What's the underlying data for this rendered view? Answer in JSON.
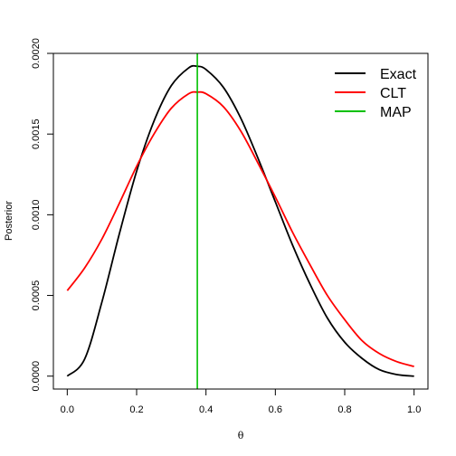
{
  "chart_data": {
    "type": "line",
    "title": "",
    "xlabel": "θ",
    "ylabel": "Posterior",
    "xlim": [
      -0.04,
      1.04
    ],
    "ylim": [
      -8e-05,
      0.002
    ],
    "x_ticks": [
      0.0,
      0.2,
      0.4,
      0.6,
      0.8,
      1.0
    ],
    "x_tick_labels": [
      "0.0",
      "0.2",
      "0.4",
      "0.6",
      "0.8",
      "1.0"
    ],
    "y_ticks": [
      0.0,
      0.0005,
      0.001,
      0.0015,
      0.002
    ],
    "y_tick_labels": [
      "0.0000",
      "0.0005",
      "0.0010",
      "0.0015",
      "0.0020"
    ],
    "grid": false,
    "legend_position": "top-right",
    "series": [
      {
        "name": "Exact",
        "color": "#000000",
        "x": [
          0.0,
          0.05,
          0.1,
          0.15,
          0.2,
          0.25,
          0.3,
          0.35,
          0.375,
          0.4,
          0.45,
          0.5,
          0.55,
          0.6,
          0.65,
          0.7,
          0.75,
          0.8,
          0.85,
          0.9,
          0.95,
          1.0
        ],
        "y": [
          0.0,
          0.000105,
          0.00046,
          0.00088,
          0.00127,
          0.00158,
          0.0018,
          0.00191,
          0.00192,
          0.0019,
          0.00179,
          0.0016,
          0.00135,
          0.00108,
          0.00081,
          0.00057,
          0.00036,
          0.00021,
          0.00011,
          4e-05,
          1e-05,
          0.0
        ]
      },
      {
        "name": "CLT",
        "color": "#ff0000",
        "x": [
          0.0,
          0.05,
          0.1,
          0.15,
          0.2,
          0.25,
          0.3,
          0.35,
          0.375,
          0.4,
          0.45,
          0.5,
          0.55,
          0.6,
          0.65,
          0.7,
          0.75,
          0.8,
          0.85,
          0.9,
          0.95,
          1.0
        ],
        "y": [
          0.00053,
          0.00067,
          0.00085,
          0.00107,
          0.0013,
          0.0015,
          0.00166,
          0.00175,
          0.00176,
          0.00175,
          0.00167,
          0.00152,
          0.00132,
          0.00111,
          0.00089,
          0.00069,
          0.0005,
          0.00035,
          0.00022,
          0.00014,
          9e-05,
          6e-05
        ]
      },
      {
        "name": "MAP",
        "color": "#00c000",
        "vline_x": 0.375
      }
    ]
  }
}
